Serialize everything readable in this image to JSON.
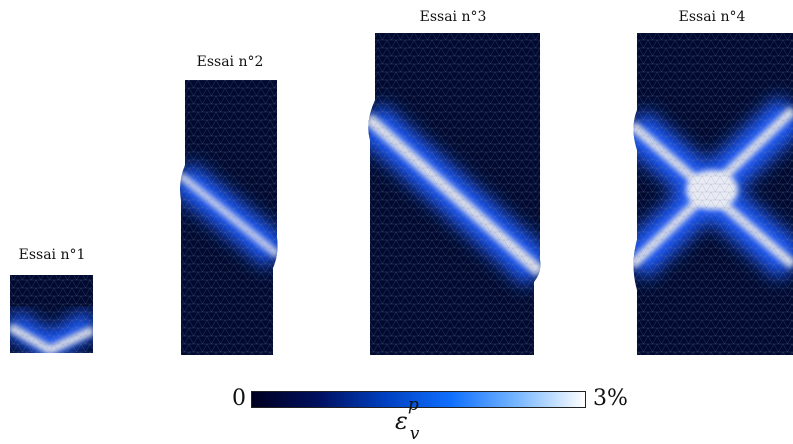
{
  "specimens": [
    {
      "id": "1",
      "title": "Essai n°1",
      "pattern": "v-band"
    },
    {
      "id": "2",
      "title": "Essai n°2",
      "pattern": "single-band"
    },
    {
      "id": "3",
      "title": "Essai n°3",
      "pattern": "single-band"
    },
    {
      "id": "4",
      "title": "Essai n°4",
      "pattern": "x-band"
    }
  ],
  "colorbar": {
    "min_label": "0",
    "max_label": "3%",
    "quantity_base": "ε",
    "quantity_sup": "p",
    "quantity_sub": "v",
    "colors": [
      "#000020",
      "#001060",
      "#0040c0",
      "#1070ff",
      "#7ab8ff",
      "#ffffff"
    ]
  },
  "colors": {
    "background": "#000a30",
    "band_core": "#d8dce8",
    "band_glow": "#1a5cff",
    "mesh": "#6a7390"
  }
}
